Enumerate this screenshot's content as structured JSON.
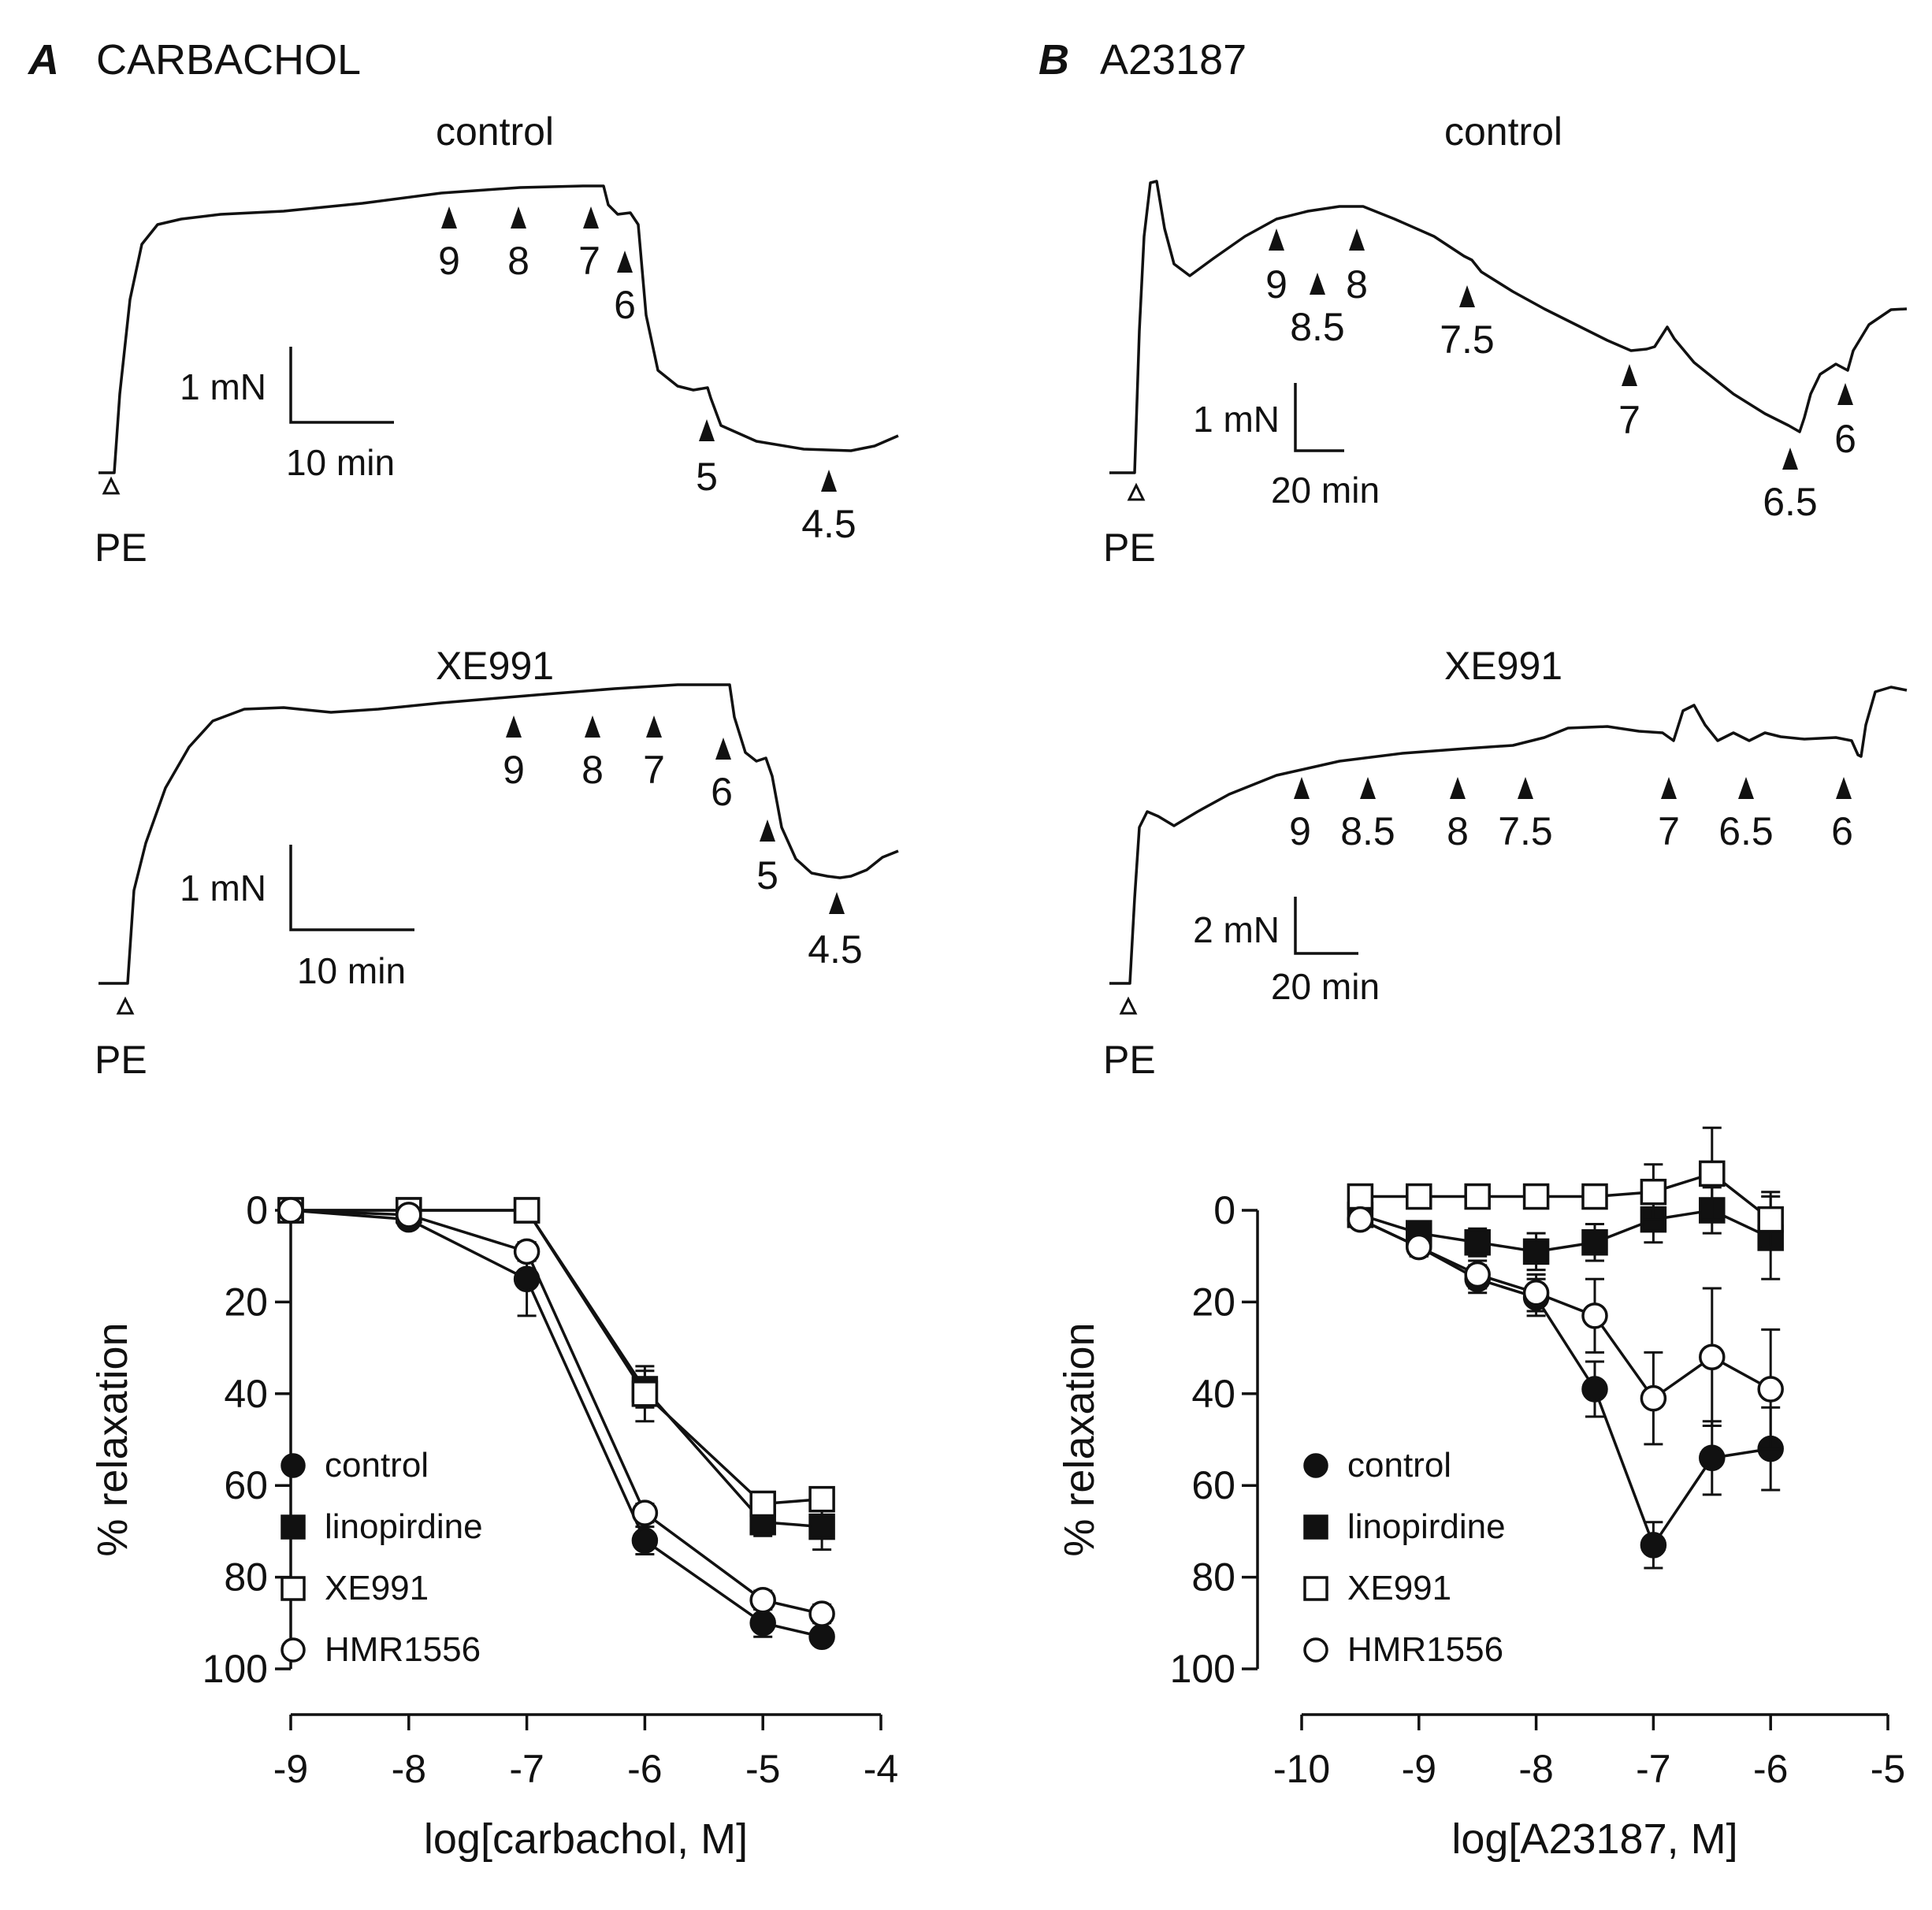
{
  "panels": [
    {
      "letter": "A",
      "name": "CARBACHOL",
      "traces": [
        {
          "title": "control",
          "scale_force": "1 mN",
          "scale_time": "10 min",
          "onset_label": "PE",
          "doses": [
            "9",
            "8",
            "7",
            "6",
            "5",
            "4.5"
          ]
        },
        {
          "title": "XE991",
          "scale_force": "1 mN",
          "scale_time": "10 min",
          "onset_label": "PE",
          "doses": [
            "9",
            "8",
            "7",
            "6",
            "5",
            "4.5"
          ]
        }
      ]
    },
    {
      "letter": "B",
      "name": "A23187",
      "traces": [
        {
          "title": "control",
          "scale_force": "1 mN",
          "scale_time": "20 min",
          "onset_label": "PE",
          "doses": [
            "9",
            "8.5",
            "8",
            "7.5",
            "7",
            "6.5",
            "6"
          ]
        },
        {
          "title": "XE991",
          "scale_force": "2 mN",
          "scale_time": "20 min",
          "onset_label": "PE",
          "doses": [
            "9",
            "8.5",
            "8",
            "7.5",
            "7",
            "6.5",
            "6"
          ]
        }
      ]
    }
  ],
  "chart_data": [
    {
      "type": "line",
      "panel": "A",
      "xlabel": "log[carbachol, M]",
      "ylabel": "% relaxation",
      "xlim": [
        -9,
        -4
      ],
      "ylim": [
        100,
        0
      ],
      "y_inverted": true,
      "xticks": [
        -9,
        -8,
        -7,
        -6,
        -5,
        -4
      ],
      "yticks": [
        0,
        20,
        40,
        60,
        80,
        100
      ],
      "legend_position": "bottom-left",
      "series": [
        {
          "name": "control",
          "marker": "filled-circle",
          "x": [
            -9,
            -8,
            -7,
            -6,
            -5,
            -4.5
          ],
          "y": [
            0,
            2,
            15,
            72,
            90,
            93
          ],
          "err": [
            0,
            1,
            8,
            3,
            3,
            1
          ]
        },
        {
          "name": "linopirdine",
          "marker": "filled-square",
          "x": [
            -9,
            -8,
            -7,
            -6,
            -5,
            -4.5
          ],
          "y": [
            0,
            0,
            0,
            39,
            68,
            69
          ],
          "err": [
            0,
            0,
            0,
            4,
            3,
            5
          ]
        },
        {
          "name": "XE991",
          "marker": "open-square",
          "x": [
            -9,
            -8,
            -7,
            -6,
            -5,
            -4.5
          ],
          "y": [
            0,
            0,
            0,
            40,
            64,
            63
          ],
          "err": [
            0,
            0,
            0,
            6,
            2,
            2
          ]
        },
        {
          "name": "HMR1556",
          "marker": "open-circle",
          "x": [
            -9,
            -8,
            -7,
            -6,
            -5,
            -4.5
          ],
          "y": [
            0,
            1,
            9,
            66,
            85,
            88
          ],
          "err": [
            0,
            1,
            2,
            2,
            2,
            2
          ]
        }
      ]
    },
    {
      "type": "line",
      "panel": "B",
      "xlabel": "log[A23187, M]",
      "ylabel": "% relaxation",
      "xlim": [
        -10,
        -5
      ],
      "ylim": [
        100,
        0
      ],
      "y_inverted": true,
      "xticks": [
        -10,
        -9,
        -8,
        -7,
        -6,
        -5
      ],
      "yticks": [
        0,
        20,
        40,
        60,
        80,
        100
      ],
      "legend_position": "bottom-left",
      "series": [
        {
          "name": "control",
          "marker": "filled-circle",
          "x": [
            -9.5,
            -9,
            -8.5,
            -8,
            -7.5,
            -7,
            -6.5,
            -6
          ],
          "y": [
            2,
            8,
            15,
            19,
            39,
            73,
            54,
            52
          ],
          "err": [
            1,
            2,
            3,
            4,
            6,
            5,
            8,
            9
          ]
        },
        {
          "name": "linopirdine",
          "marker": "filled-square",
          "x": [
            -9.5,
            -9,
            -8.5,
            -8,
            -7.5,
            -7,
            -6.5,
            -6
          ],
          "y": [
            1,
            5,
            7,
            9,
            7,
            2,
            0,
            6
          ],
          "err": [
            1,
            2,
            3,
            4,
            4,
            5,
            5,
            9
          ]
        },
        {
          "name": "XE991",
          "marker": "open-square",
          "x": [
            -9.5,
            -9,
            -8.5,
            -8,
            -7.5,
            -7,
            -6.5,
            -6
          ],
          "y": [
            -3,
            -3,
            -3,
            -3,
            -3,
            -4,
            -8,
            2
          ],
          "err": [
            1,
            1,
            1,
            1,
            2,
            6,
            10,
            6
          ]
        },
        {
          "name": "HMR1556",
          "marker": "open-circle",
          "x": [
            -9.5,
            -9,
            -8.5,
            -8,
            -7.5,
            -7,
            -6.5,
            -6
          ],
          "y": [
            2,
            8,
            14,
            18,
            23,
            41,
            32,
            39
          ],
          "err": [
            1,
            2,
            3,
            4,
            8,
            10,
            15,
            13
          ]
        }
      ]
    }
  ]
}
